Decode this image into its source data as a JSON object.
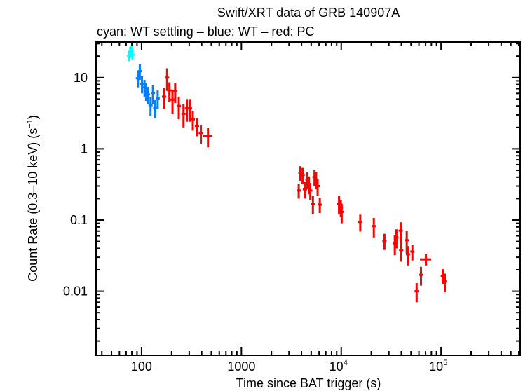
{
  "chart_data": {
    "type": "scatter",
    "title": "Swift/XRT data of GRB 140907A",
    "subtitle": "cyan: WT settling – blue: WT – red: PC",
    "xlabel": "Time since BAT trigger (s)",
    "ylabel": "Count Rate (0.3–10 keV) (s",
    "ylabel_sup": "−1",
    "ylabel_end": ")",
    "x_scale": "log",
    "y_scale": "log",
    "xlim": [
      35,
      620000
    ],
    "ylim": [
      0.00126,
      31.6
    ],
    "grid": false,
    "x_ticks": [
      {
        "value": 100,
        "label": "100",
        "sup": ""
      },
      {
        "value": 1000,
        "label": "1000",
        "sup": ""
      },
      {
        "value": 10000,
        "label": "10",
        "sup": "4"
      },
      {
        "value": 100000,
        "label": "10",
        "sup": "5"
      }
    ],
    "y_ticks": [
      {
        "value": 10,
        "label": "10"
      },
      {
        "value": 1,
        "label": "1"
      },
      {
        "value": 0.1,
        "label": "0.1"
      },
      {
        "value": 0.01,
        "label": "0.01"
      }
    ],
    "point_format": [
      "time",
      "rate",
      "time_err",
      "rate_err"
    ],
    "series": [
      {
        "name": "WT settling",
        "color": "#00ffff",
        "points": [
          [
            75,
            20,
            1,
            3
          ],
          [
            77,
            23,
            1,
            4
          ],
          [
            79,
            24,
            1,
            4
          ],
          [
            81,
            21,
            1,
            3
          ]
        ]
      },
      {
        "name": "WT",
        "color": "#0080ff",
        "points": [
          [
            92,
            9.8,
            2,
            2.5
          ],
          [
            96,
            12.3,
            2,
            3
          ],
          [
            101,
            8.2,
            2,
            2.2
          ],
          [
            107,
            7.3,
            2,
            2
          ],
          [
            111,
            6.5,
            2,
            1.8
          ],
          [
            116,
            5.8,
            2,
            1.6
          ],
          [
            123,
            4.1,
            2,
            1.2
          ],
          [
            130,
            6.1,
            3,
            1.8
          ],
          [
            137,
            3.8,
            3,
            1.1
          ],
          [
            145,
            5.1,
            3,
            1.5
          ]
        ]
      },
      {
        "name": "PC",
        "color": "#ff0000",
        "points": [
          [
            168,
            5.4,
            8,
            1.8
          ],
          [
            180,
            10,
            5,
            3.5
          ],
          [
            190,
            6.6,
            6,
            2
          ],
          [
            204,
            4.9,
            7,
            1.8
          ],
          [
            217,
            6.4,
            6,
            2
          ],
          [
            236,
            4.0,
            10,
            1.4
          ],
          [
            263,
            3.1,
            12,
            1.1
          ],
          [
            285,
            3.7,
            10,
            1.3
          ],
          [
            306,
            3.7,
            10,
            1.3
          ],
          [
            326,
            2.6,
            14,
            0.8
          ],
          [
            359,
            2.1,
            16,
            0.6
          ],
          [
            393,
            1.67,
            20,
            0.5
          ],
          [
            463,
            1.5,
            48,
            0.45
          ],
          [
            3750,
            0.26,
            60,
            0.06
          ],
          [
            3900,
            0.46,
            50,
            0.11
          ],
          [
            4100,
            0.43,
            50,
            0.11
          ],
          [
            4330,
            0.27,
            50,
            0.07
          ],
          [
            4580,
            0.37,
            50,
            0.1
          ],
          [
            4750,
            0.32,
            50,
            0.09
          ],
          [
            4900,
            0.26,
            50,
            0.07
          ],
          [
            5200,
            0.17,
            80,
            0.05
          ],
          [
            5400,
            0.4,
            50,
            0.1
          ],
          [
            5600,
            0.37,
            50,
            0.1
          ],
          [
            5800,
            0.3,
            50,
            0.08
          ],
          [
            6100,
            0.165,
            100,
            0.04
          ],
          [
            9500,
            0.17,
            80,
            0.05
          ],
          [
            9900,
            0.15,
            80,
            0.04
          ],
          [
            10100,
            0.13,
            80,
            0.04
          ],
          [
            15500,
            0.094,
            200,
            0.025
          ],
          [
            21200,
            0.082,
            200,
            0.025
          ],
          [
            27100,
            0.051,
            300,
            0.013
          ],
          [
            34400,
            0.047,
            300,
            0.015
          ],
          [
            35700,
            0.057,
            300,
            0.017
          ],
          [
            39400,
            0.071,
            300,
            0.022
          ],
          [
            39800,
            0.038,
            300,
            0.012
          ],
          [
            45300,
            0.052,
            300,
            0.018
          ],
          [
            46600,
            0.033,
            300,
            0.01
          ],
          [
            51600,
            0.036,
            500,
            0.009
          ],
          [
            56900,
            0.01,
            800,
            0.003
          ],
          [
            62900,
            0.017,
            800,
            0.005
          ],
          [
            70500,
            0.028,
            9000,
            0.005
          ],
          [
            104000,
            0.0164,
            1500,
            0.004
          ],
          [
            109000,
            0.0137,
            1500,
            0.004
          ]
        ]
      }
    ]
  }
}
